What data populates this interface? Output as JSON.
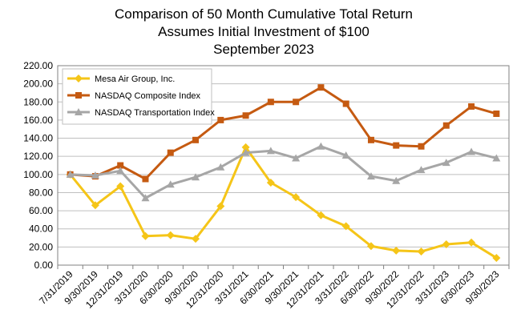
{
  "chart_data": {
    "type": "line",
    "title": [
      "Comparison of 50 Month Cumulative Total Return",
      "Assumes Initial Investment of $100",
      "September 2023"
    ],
    "categories": [
      "7/31/2019",
      "9/30/2019",
      "12/31/2019",
      "3/31/2020",
      "6/30/2020",
      "9/30/2020",
      "12/31/2020",
      "3/31/2021",
      "6/30/2021",
      "9/30/2021",
      "12/31/2021",
      "3/31/2022",
      "6/30/2022",
      "9/30/2022",
      "12/31/2022",
      "3/31/2023",
      "6/30/2023",
      "9/30/2023"
    ],
    "y_ticks": [
      "0.00",
      "20.00",
      "40.00",
      "60.00",
      "80.00",
      "100.00",
      "120.00",
      "140.00",
      "160.00",
      "180.00",
      "200.00",
      "220.00"
    ],
    "ylim": [
      0,
      220
    ],
    "grid": true,
    "legend_position": "top-left",
    "series": [
      {
        "name": "Mesa Air Group, Inc.",
        "color": "#F5C518",
        "marker": "diamond",
        "values": [
          100,
          66,
          87,
          32,
          33,
          29,
          65,
          130,
          91,
          75,
          55,
          43,
          21,
          16,
          15,
          23,
          25,
          8
        ]
      },
      {
        "name": "NASDAQ Composite Index",
        "color": "#C55A11",
        "marker": "square",
        "values": [
          100,
          98,
          110,
          95,
          124,
          138,
          160,
          165,
          180,
          180,
          196,
          178,
          138,
          132,
          131,
          154,
          175,
          167
        ]
      },
      {
        "name": "NASDAQ Transportation Index",
        "color": "#A6A6A6",
        "marker": "triangle",
        "values": [
          100,
          99,
          104,
          74,
          89,
          97,
          108,
          124,
          126,
          118,
          131,
          121,
          98,
          93,
          105,
          113,
          125,
          118
        ]
      }
    ]
  }
}
